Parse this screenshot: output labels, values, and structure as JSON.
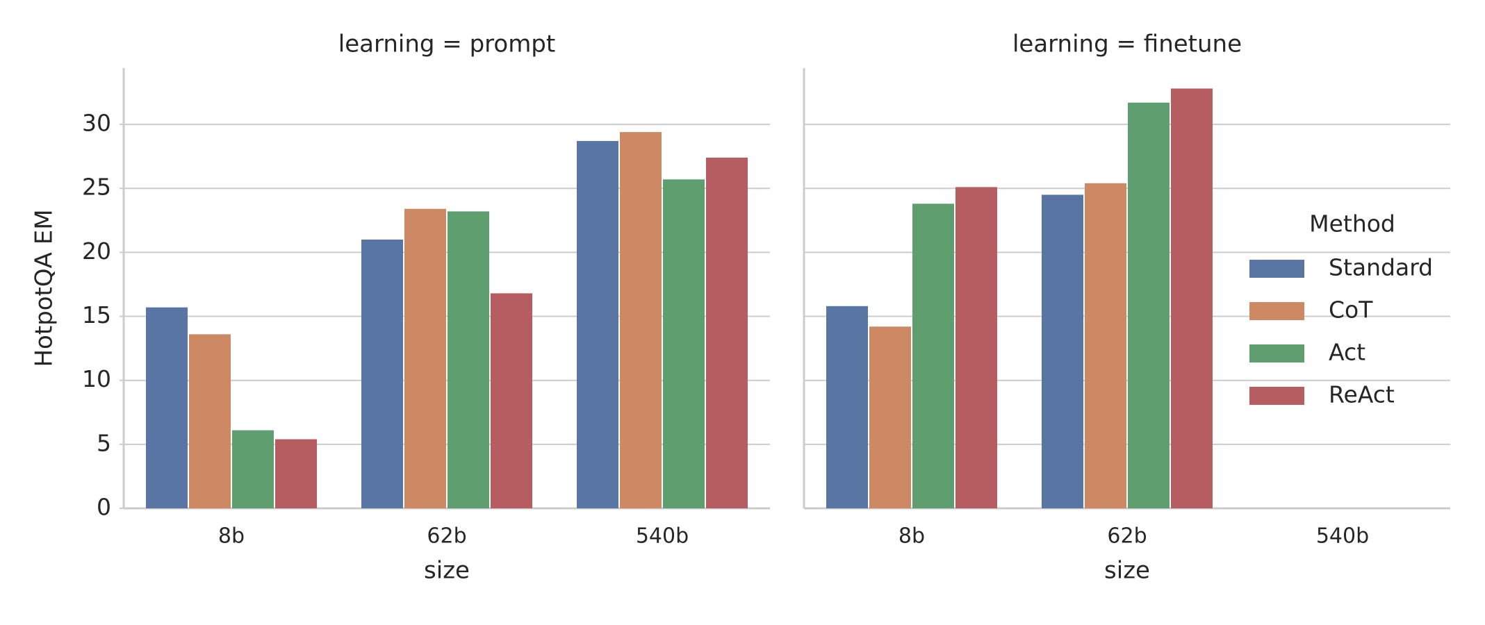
{
  "chart_data": [
    {
      "type": "bar",
      "title": "learning = prompt",
      "xlabel": "size",
      "ylabel": "HotpotQA EM",
      "categories": [
        "8b",
        "62b",
        "540b"
      ],
      "series": [
        {
          "name": "Standard",
          "color": "#5975a4",
          "values": [
            15.7,
            21.0,
            28.7
          ]
        },
        {
          "name": "CoT",
          "color": "#cc8963",
          "values": [
            13.6,
            23.4,
            29.4
          ]
        },
        {
          "name": "Act",
          "color": "#5f9e6e",
          "values": [
            6.1,
            23.2,
            25.7
          ]
        },
        {
          "name": "ReAct",
          "color": "#b55d60",
          "values": [
            5.4,
            16.8,
            27.4
          ]
        }
      ],
      "ylim": [
        0,
        34.4
      ],
      "yticks": [
        0,
        5,
        10,
        15,
        20,
        25,
        30
      ],
      "grid": true,
      "legend_title": "Method"
    },
    {
      "type": "bar",
      "title": "learning = finetune",
      "xlabel": "size",
      "categories": [
        "8b",
        "62b",
        "540b"
      ],
      "series": [
        {
          "name": "Standard",
          "color": "#5975a4",
          "values": [
            15.8,
            24.5,
            null
          ]
        },
        {
          "name": "CoT",
          "color": "#cc8963",
          "values": [
            14.2,
            25.4,
            null
          ]
        },
        {
          "name": "Act",
          "color": "#5f9e6e",
          "values": [
            23.8,
            31.7,
            null
          ]
        },
        {
          "name": "ReAct",
          "color": "#b55d60",
          "values": [
            25.1,
            32.8,
            null
          ]
        }
      ],
      "ylim": [
        0,
        34.4
      ],
      "yticks": [
        0,
        5,
        10,
        15,
        20,
        25,
        30
      ],
      "grid": true
    }
  ]
}
